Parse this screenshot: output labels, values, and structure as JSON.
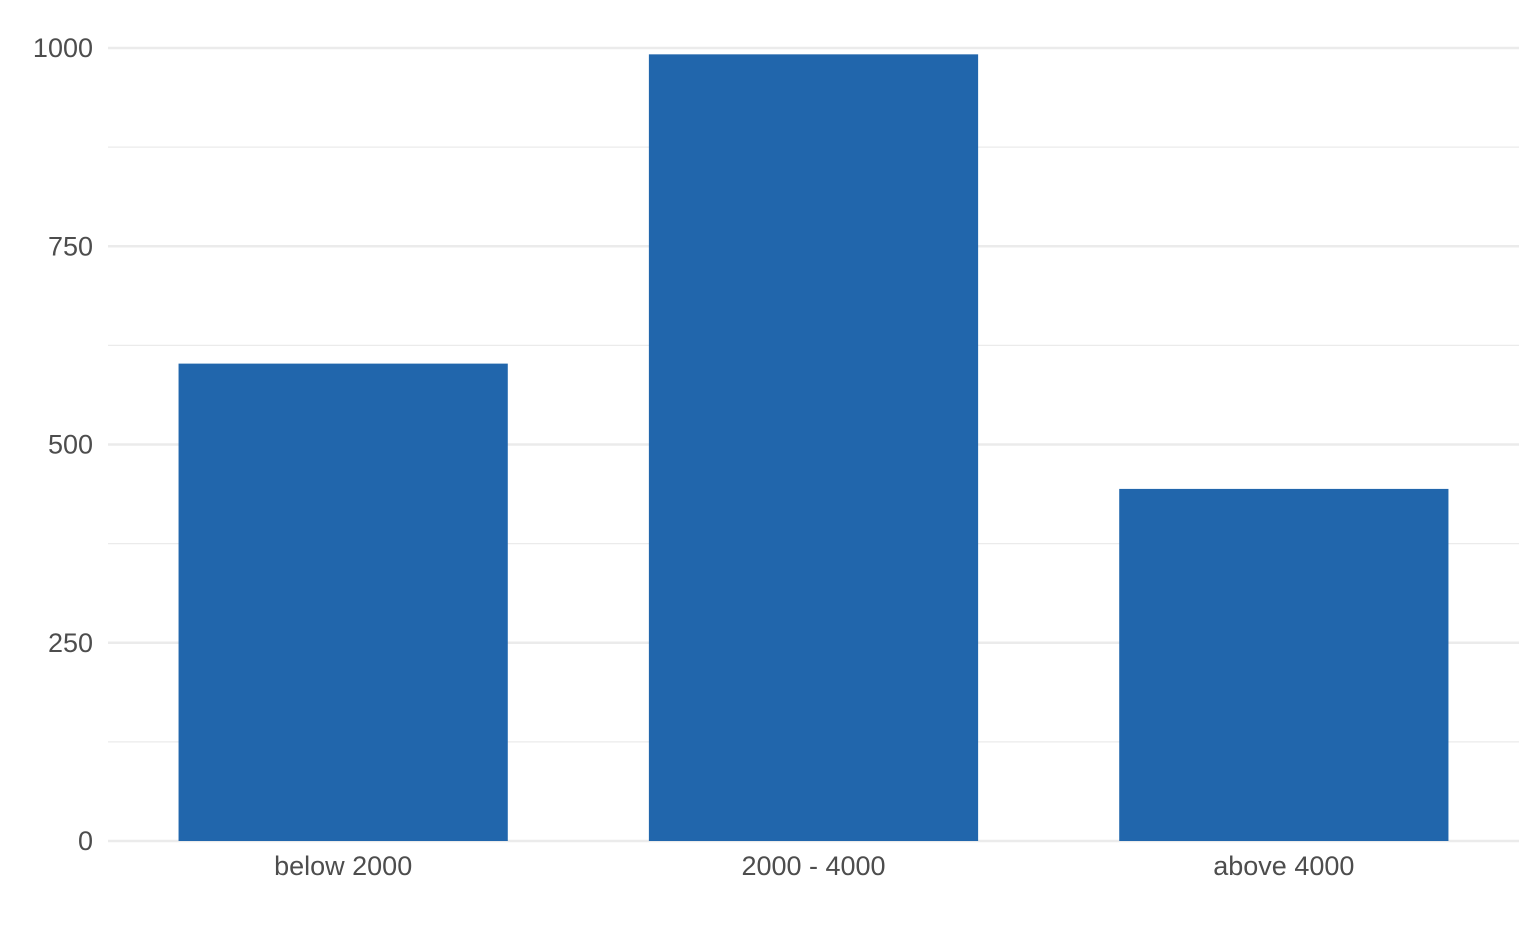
{
  "chart_data": {
    "type": "bar",
    "categories": [
      "below 2000",
      "2000 - 4000",
      "above 4000"
    ],
    "values": [
      602,
      992,
      444
    ],
    "title": "",
    "xlabel": "",
    "ylabel": "",
    "ylim": [
      0,
      1000
    ],
    "yticks": [
      0,
      250,
      500,
      750,
      1000
    ],
    "ytick_labels": [
      "0",
      "250",
      "500",
      "750",
      "1000"
    ],
    "minor_gridlines": [
      125,
      375,
      625,
      875
    ],
    "grid": true,
    "legend": "none",
    "colors": {
      "bar": "#2166ac",
      "grid": "#ebebeb",
      "text": "#4d4d4d",
      "background": "#ffffff"
    }
  }
}
